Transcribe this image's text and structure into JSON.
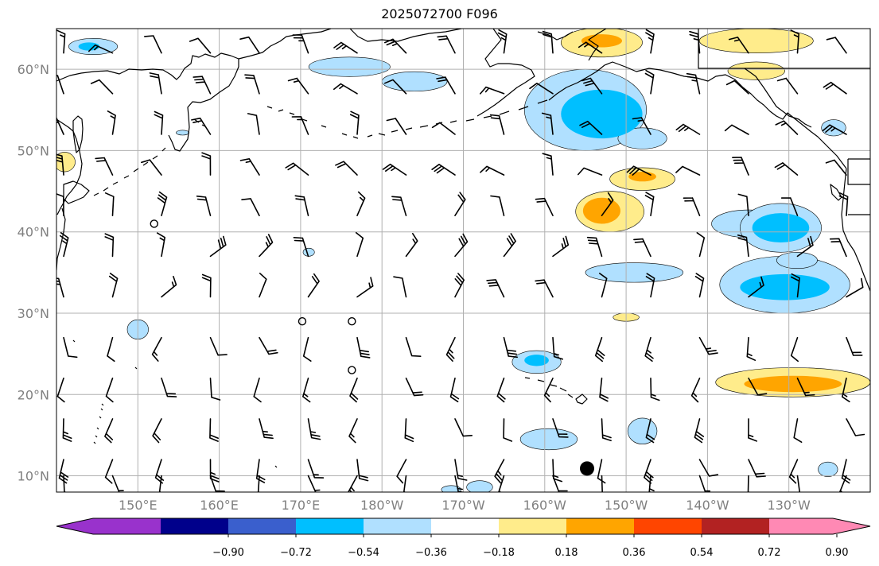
{
  "title": "2025072700 F096",
  "map": {
    "lon_min": 140,
    "lon_max": 240,
    "lat_min": 8,
    "lat_max": 65,
    "lat_labels": [
      {
        "lat": 60,
        "label": "60°N"
      },
      {
        "lat": 50,
        "label": "50°N"
      },
      {
        "lat": 40,
        "label": "40°N"
      },
      {
        "lat": 30,
        "label": "30°N"
      },
      {
        "lat": 20,
        "label": "20°N"
      },
      {
        "lat": 10,
        "label": "10°N"
      }
    ],
    "lon_labels": [
      {
        "lon": 150,
        "label": "150°E"
      },
      {
        "lon": 160,
        "label": "160°E"
      },
      {
        "lon": 170,
        "label": "170°E"
      },
      {
        "lon": 180,
        "label": "180°W"
      },
      {
        "lon": 190,
        "label": "170°W"
      },
      {
        "lon": 200,
        "label": "160°W"
      },
      {
        "lon": 210,
        "label": "150°W"
      },
      {
        "lon": 220,
        "label": "140°W"
      },
      {
        "lon": 230,
        "label": "130°W"
      }
    ],
    "colors": {
      "strong_neg": "#00bfff",
      "weak_neg": "#b0e0ff",
      "weak_pos": "#ffec8b",
      "strong_pos": "#ffa500"
    },
    "anomalies": [
      {
        "lon": 144.5,
        "lat": 62.8,
        "rx": 3.0,
        "ry": 1.0,
        "level": "weak_neg"
      },
      {
        "lon": 144.0,
        "lat": 62.8,
        "rx": 1.3,
        "ry": 0.5,
        "level": "strong_neg"
      },
      {
        "lon": 176.0,
        "lat": 60.3,
        "rx": 5.0,
        "ry": 1.2,
        "level": "weak_neg"
      },
      {
        "lon": 184.0,
        "lat": 58.5,
        "rx": 4.0,
        "ry": 1.2,
        "level": "weak_neg"
      },
      {
        "lon": 205.0,
        "lat": 55.0,
        "rx": 7.5,
        "ry": 5.0,
        "level": "weak_neg"
      },
      {
        "lon": 207.0,
        "lat": 54.5,
        "rx": 5.0,
        "ry": 3.0,
        "level": "strong_neg"
      },
      {
        "lon": 212.0,
        "lat": 51.5,
        "rx": 3.0,
        "ry": 1.3,
        "level": "weak_neg"
      },
      {
        "lon": 235.5,
        "lat": 52.8,
        "rx": 1.5,
        "ry": 1.0,
        "level": "weak_neg"
      },
      {
        "lon": 155.5,
        "lat": 52.2,
        "rx": 0.8,
        "ry": 0.3,
        "level": "weak_neg"
      },
      {
        "lon": 207.0,
        "lat": 63.3,
        "rx": 5.0,
        "ry": 1.8,
        "level": "weak_pos"
      },
      {
        "lon": 207.0,
        "lat": 63.5,
        "rx": 2.5,
        "ry": 0.8,
        "level": "strong_pos"
      },
      {
        "lon": 226.0,
        "lat": 63.5,
        "rx": 7.0,
        "ry": 1.5,
        "level": "weak_pos"
      },
      {
        "lon": 226.0,
        "lat": 59.8,
        "rx": 3.5,
        "ry": 1.1,
        "level": "weak_pos"
      },
      {
        "lon": 141.0,
        "lat": 48.6,
        "rx": 1.3,
        "ry": 1.2,
        "level": "weak_pos"
      },
      {
        "lon": 212.0,
        "lat": 46.5,
        "rx": 4.0,
        "ry": 1.4,
        "level": "weak_pos"
      },
      {
        "lon": 212.0,
        "lat": 46.8,
        "rx": 1.7,
        "ry": 0.6,
        "level": "strong_pos"
      },
      {
        "lon": 208.0,
        "lat": 42.5,
        "rx": 4.2,
        "ry": 2.5,
        "level": "weak_pos"
      },
      {
        "lon": 207.0,
        "lat": 42.6,
        "rx": 2.3,
        "ry": 1.6,
        "level": "strong_pos"
      },
      {
        "lon": 225.0,
        "lat": 41.0,
        "rx": 4.5,
        "ry": 1.7,
        "level": "weak_neg"
      },
      {
        "lon": 229.0,
        "lat": 40.5,
        "rx": 5.0,
        "ry": 3.0,
        "level": "weak_neg"
      },
      {
        "lon": 229.0,
        "lat": 40.5,
        "rx": 3.5,
        "ry": 1.8,
        "level": "strong_neg"
      },
      {
        "lon": 171.0,
        "lat": 37.5,
        "rx": 0.7,
        "ry": 0.5,
        "level": "weak_neg"
      },
      {
        "lon": 211.0,
        "lat": 35.0,
        "rx": 6.0,
        "ry": 1.2,
        "level": "weak_neg"
      },
      {
        "lon": 229.5,
        "lat": 33.5,
        "rx": 8.0,
        "ry": 3.5,
        "level": "weak_neg"
      },
      {
        "lon": 229.5,
        "lat": 33.2,
        "rx": 5.5,
        "ry": 1.6,
        "level": "strong_neg"
      },
      {
        "lon": 231.0,
        "lat": 36.5,
        "rx": 2.5,
        "ry": 1.0,
        "level": "weak_neg"
      },
      {
        "lon": 150.0,
        "lat": 28.0,
        "rx": 1.3,
        "ry": 1.2,
        "level": "weak_neg"
      },
      {
        "lon": 210.0,
        "lat": 29.5,
        "rx": 1.6,
        "ry": 0.5,
        "level": "weak_pos"
      },
      {
        "lon": 199.0,
        "lat": 24.0,
        "rx": 3.0,
        "ry": 1.4,
        "level": "weak_neg"
      },
      {
        "lon": 199.0,
        "lat": 24.2,
        "rx": 1.5,
        "ry": 0.7,
        "level": "strong_neg"
      },
      {
        "lon": 230.5,
        "lat": 21.5,
        "rx": 9.5,
        "ry": 1.8,
        "level": "weak_pos"
      },
      {
        "lon": 230.5,
        "lat": 21.3,
        "rx": 6.0,
        "ry": 1.0,
        "level": "strong_pos"
      },
      {
        "lon": 200.5,
        "lat": 14.5,
        "rx": 3.5,
        "ry": 1.3,
        "level": "weak_neg"
      },
      {
        "lon": 212.0,
        "lat": 15.5,
        "rx": 1.8,
        "ry": 1.6,
        "level": "weak_neg"
      },
      {
        "lon": 234.8,
        "lat": 10.8,
        "rx": 1.2,
        "ry": 0.9,
        "level": "weak_neg"
      },
      {
        "lon": 192.0,
        "lat": 8.6,
        "rx": 1.6,
        "ry": 0.8,
        "level": "weak_neg"
      },
      {
        "lon": 188.5,
        "lat": 8.3,
        "rx": 1.2,
        "ry": 0.5,
        "level": "weak_neg"
      }
    ],
    "wind_barbs_note": "",
    "barb_rows": [
      62,
      57,
      52,
      47,
      42,
      37,
      32,
      27,
      22,
      17,
      12,
      10
    ],
    "calm_markers": [
      {
        "lon": 152,
        "lat": 41
      },
      {
        "lon": 170.2,
        "lat": 29
      },
      {
        "lon": 176.3,
        "lat": 29
      },
      {
        "lon": 176.3,
        "lat": 23
      }
    ],
    "storm_marker": {
      "lon": 205.2,
      "lat": 10.9
    }
  },
  "colorbar": {
    "colors": [
      "#9932cc",
      "#00008b",
      "#3a5fcd",
      "#00bfff",
      "#b0e0ff",
      "#ffffff",
      "#ffec8b",
      "#ffa500",
      "#ff4500",
      "#b22222",
      "#ff89b4"
    ],
    "tick_labels": [
      "−0.90",
      "−0.72",
      "−0.54",
      "−0.36",
      "−0.18",
      "0.18",
      "0.36",
      "0.54",
      "0.72",
      "0.90"
    ]
  }
}
